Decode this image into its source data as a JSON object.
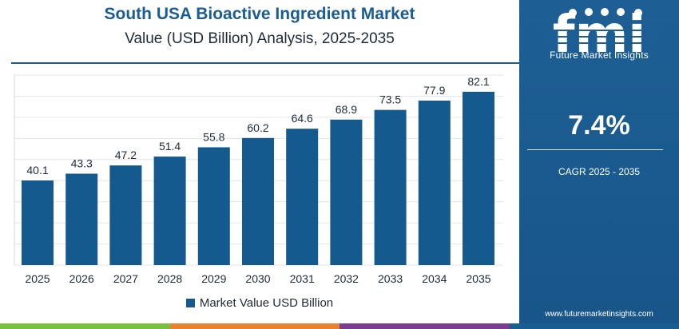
{
  "header": {
    "title": "South USA Bioactive Ingredient Market",
    "subtitle": "Value (USD Billion) Analysis, 2025-2035"
  },
  "chart_data": {
    "type": "bar",
    "title": "South USA Bioactive Ingredient Market",
    "subtitle": "Value (USD Billion) Analysis, 2025-2035",
    "categories": [
      "2025",
      "2026",
      "2027",
      "2028",
      "2029",
      "2030",
      "2031",
      "2032",
      "2033",
      "2034",
      "2035"
    ],
    "series": [
      {
        "name": "Market Value USD Billion",
        "values": [
          40.1,
          43.3,
          47.2,
          51.4,
          55.8,
          60.2,
          64.6,
          68.9,
          73.5,
          77.9,
          82.1
        ]
      }
    ],
    "data_labels": [
      "40.1",
      "43.3",
      "47.2",
      "51.4",
      "55.8",
      "60.2",
      "64.6",
      "68.9",
      "73.5",
      "77.9",
      "82.1"
    ],
    "xlabel": "",
    "ylabel": "",
    "ylim": [
      0,
      90
    ],
    "grid": true,
    "legend_position": "bottom-center",
    "bar_color": "#155a8f"
  },
  "legend": {
    "label": "Market Value USD Billion"
  },
  "side_panel": {
    "logo_letters": "fmi",
    "logo_caption": "Future Market Insights",
    "cagr_value": "7.4%",
    "cagr_label": "CAGR 2025 - 2035",
    "website": "www.futuremarketinsights.com"
  },
  "colors": {
    "accent": "#1a5e91",
    "panel": "#1d5f95",
    "bar": "#155a8f",
    "strip": [
      "#7bbf3e",
      "#e9812d",
      "#7a3c91",
      "#1a5e91"
    ]
  }
}
